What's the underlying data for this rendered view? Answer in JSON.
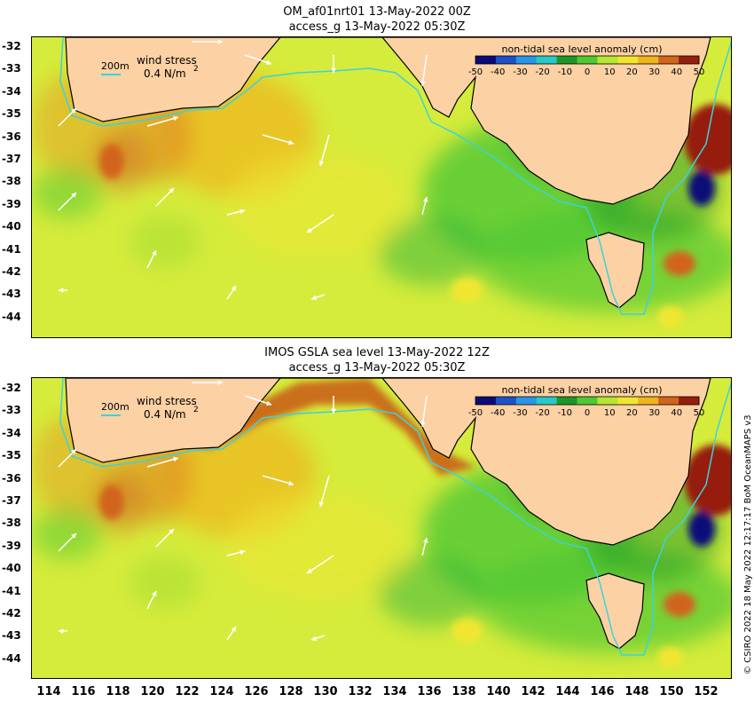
{
  "panels": [
    {
      "title_line1": "OM_af01nrt01 13-May-2022 00Z",
      "title_line2": "access_g 13-May-2022 05:30Z"
    },
    {
      "title_line1": "IMOS GSLA sea level  13-May-2022 12Z",
      "title_line2": "access_g 13-May-2022 05:30Z"
    }
  ],
  "legend": {
    "contour_label": "200m",
    "wind_label": "wind stress",
    "wind_value": "0.4 N/m",
    "wind_exp": "2",
    "colorbar_title": "non-tidal sea level anomaly (cm)",
    "colorbar_ticks": [
      "-50",
      "-40",
      "-30",
      "-20",
      "-10",
      "0",
      "10",
      "20",
      "30",
      "40",
      "50"
    ],
    "colorbar_colors": [
      "#0a0a78",
      "#1e50c8",
      "#2896e6",
      "#28c8c8",
      "#1e9628",
      "#50c832",
      "#b4e632",
      "#f0e632",
      "#f0b41e",
      "#d2641e",
      "#961e0a"
    ]
  },
  "y_ticks": [
    "-32",
    "-33",
    "-34",
    "-35",
    "-36",
    "-37",
    "-38",
    "-39",
    "-40",
    "-41",
    "-42",
    "-43",
    "-44"
  ],
  "x_ticks": [
    "114",
    "116",
    "118",
    "120",
    "122",
    "124",
    "126",
    "128",
    "130",
    "132",
    "134",
    "136",
    "138",
    "140",
    "142",
    "144",
    "146",
    "148",
    "150",
    "152"
  ],
  "copyright": "© CSIRO 2022  18 May 2022 12:17:17 BoM OceanMAPS v3",
  "colors": {
    "land": "#fcd1a4",
    "ocean_base": "#d6ec3c",
    "shelf_contour": "#3cd2dc",
    "wind_arrow": "#ffffff"
  }
}
